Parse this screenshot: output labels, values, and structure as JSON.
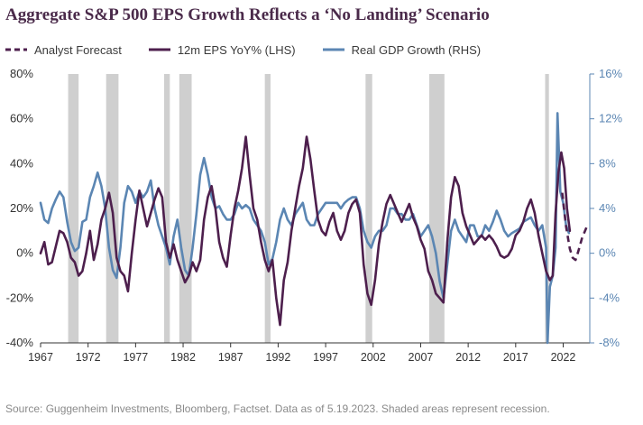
{
  "chart_data": {
    "type": "line",
    "title": "Aggregate S&P 500 EPS Growth Reflects a ‘No Landing’ Scenario",
    "source": "Source: Guggenheim Investments, Bloomberg, Factset. Data as of 5.19.2023. Shaded areas represent recession.",
    "xlim": [
      1967,
      2024.8
    ],
    "x_ticks": [
      "1967",
      "1972",
      "1977",
      "1982",
      "1987",
      "1992",
      "1997",
      "2002",
      "2007",
      "2012",
      "2017",
      "2022"
    ],
    "y_left": {
      "lim": [
        -40,
        80
      ],
      "ticks": [
        "-40%",
        "-20%",
        "0%",
        "20%",
        "40%",
        "60%",
        "80%"
      ]
    },
    "y_right": {
      "lim": [
        -8,
        16
      ],
      "ticks": [
        "-8%",
        "-4%",
        "0%",
        "4%",
        "8%",
        "12%",
        "16%"
      ]
    },
    "legend_position": "top-left",
    "grid": false,
    "recessions": [
      [
        1969.9,
        1971.0
      ],
      [
        1973.9,
        1975.2
      ],
      [
        1980.0,
        1980.6
      ],
      [
        1981.6,
        1982.9
      ],
      [
        1990.6,
        1991.2
      ],
      [
        2001.2,
        2001.9
      ],
      [
        2007.9,
        2009.5
      ],
      [
        2020.1,
        2020.5
      ]
    ],
    "series": [
      {
        "name": "Analyst Forecast",
        "axis": "left",
        "color": "#4d1f4d",
        "style": "dashed",
        "points": [
          [
            2021.9,
            27
          ],
          [
            2022.3,
            12
          ],
          [
            2022.7,
            2
          ],
          [
            2023.0,
            -2
          ],
          [
            2023.3,
            -3
          ],
          [
            2023.6,
            1
          ],
          [
            2024.0,
            7
          ],
          [
            2024.5,
            12
          ]
        ]
      },
      {
        "name": "12m EPS YoY% (LHS)",
        "axis": "left",
        "color": "#4d1f4d",
        "style": "solid",
        "points": [
          [
            1967.0,
            0
          ],
          [
            1967.4,
            5
          ],
          [
            1967.8,
            -5
          ],
          [
            1968.2,
            -4
          ],
          [
            1968.6,
            3
          ],
          [
            1969.0,
            10
          ],
          [
            1969.4,
            9
          ],
          [
            1969.8,
            5
          ],
          [
            1970.2,
            -2
          ],
          [
            1970.6,
            -4
          ],
          [
            1971.0,
            -10
          ],
          [
            1971.4,
            -8
          ],
          [
            1971.8,
            0
          ],
          [
            1972.2,
            10
          ],
          [
            1972.6,
            -3
          ],
          [
            1973.0,
            4
          ],
          [
            1973.4,
            15
          ],
          [
            1973.8,
            20
          ],
          [
            1974.2,
            27
          ],
          [
            1974.6,
            18
          ],
          [
            1975.0,
            -2
          ],
          [
            1975.4,
            -8
          ],
          [
            1975.8,
            -10
          ],
          [
            1976.2,
            -17
          ],
          [
            1976.6,
            0
          ],
          [
            1977.0,
            15
          ],
          [
            1977.4,
            28
          ],
          [
            1977.8,
            20
          ],
          [
            1978.2,
            12
          ],
          [
            1978.6,
            18
          ],
          [
            1979.0,
            24
          ],
          [
            1979.4,
            29
          ],
          [
            1979.8,
            25
          ],
          [
            1980.2,
            5
          ],
          [
            1980.6,
            -2
          ],
          [
            1981.0,
            4
          ],
          [
            1981.4,
            -3
          ],
          [
            1981.8,
            -8
          ],
          [
            1982.2,
            -13
          ],
          [
            1982.6,
            -10
          ],
          [
            1983.0,
            -4
          ],
          [
            1983.4,
            -8
          ],
          [
            1983.8,
            -3
          ],
          [
            1984.2,
            15
          ],
          [
            1984.6,
            25
          ],
          [
            1985.0,
            30
          ],
          [
            1985.4,
            20
          ],
          [
            1985.8,
            5
          ],
          [
            1986.2,
            -2
          ],
          [
            1986.6,
            -6
          ],
          [
            1987.0,
            8
          ],
          [
            1987.4,
            20
          ],
          [
            1987.8,
            28
          ],
          [
            1988.2,
            38
          ],
          [
            1988.6,
            52
          ],
          [
            1989.0,
            35
          ],
          [
            1989.4,
            20
          ],
          [
            1989.8,
            15
          ],
          [
            1990.2,
            5
          ],
          [
            1990.6,
            -3
          ],
          [
            1991.0,
            -8
          ],
          [
            1991.4,
            -3
          ],
          [
            1991.8,
            -20
          ],
          [
            1992.2,
            -32
          ],
          [
            1992.6,
            -12
          ],
          [
            1993.0,
            -4
          ],
          [
            1993.4,
            10
          ],
          [
            1993.8,
            20
          ],
          [
            1994.2,
            30
          ],
          [
            1994.6,
            38
          ],
          [
            1995.0,
            52
          ],
          [
            1995.4,
            42
          ],
          [
            1995.8,
            28
          ],
          [
            1996.2,
            15
          ],
          [
            1996.6,
            10
          ],
          [
            1997.0,
            8
          ],
          [
            1997.4,
            14
          ],
          [
            1997.8,
            18
          ],
          [
            1998.2,
            10
          ],
          [
            1998.6,
            6
          ],
          [
            1999.0,
            10
          ],
          [
            1999.4,
            18
          ],
          [
            1999.8,
            22
          ],
          [
            2000.2,
            24
          ],
          [
            2000.6,
            18
          ],
          [
            2001.0,
            -5
          ],
          [
            2001.4,
            -18
          ],
          [
            2001.8,
            -23
          ],
          [
            2002.2,
            -12
          ],
          [
            2002.6,
            4
          ],
          [
            2003.0,
            14
          ],
          [
            2003.4,
            22
          ],
          [
            2003.8,
            26
          ],
          [
            2004.2,
            22
          ],
          [
            2004.6,
            18
          ],
          [
            2005.0,
            14
          ],
          [
            2005.4,
            18
          ],
          [
            2005.8,
            22
          ],
          [
            2006.2,
            16
          ],
          [
            2006.6,
            12
          ],
          [
            2007.0,
            6
          ],
          [
            2007.4,
            2
          ],
          [
            2007.8,
            -8
          ],
          [
            2008.2,
            -12
          ],
          [
            2008.6,
            -18
          ],
          [
            2009.0,
            -20
          ],
          [
            2009.4,
            -22
          ],
          [
            2009.8,
            5
          ],
          [
            2010.2,
            25
          ],
          [
            2010.6,
            34
          ],
          [
            2011.0,
            30
          ],
          [
            2011.4,
            18
          ],
          [
            2011.8,
            12
          ],
          [
            2012.2,
            8
          ],
          [
            2012.6,
            4
          ],
          [
            2013.0,
            6
          ],
          [
            2013.4,
            8
          ],
          [
            2013.8,
            6
          ],
          [
            2014.2,
            8
          ],
          [
            2014.6,
            6
          ],
          [
            2015.0,
            3
          ],
          [
            2015.4,
            -1
          ],
          [
            2015.8,
            -2
          ],
          [
            2016.2,
            -1
          ],
          [
            2016.6,
            2
          ],
          [
            2017.0,
            8
          ],
          [
            2017.4,
            10
          ],
          [
            2017.8,
            14
          ],
          [
            2018.2,
            20
          ],
          [
            2018.6,
            24
          ],
          [
            2019.0,
            18
          ],
          [
            2019.4,
            8
          ],
          [
            2019.8,
            0
          ],
          [
            2020.2,
            -8
          ],
          [
            2020.6,
            -12
          ],
          [
            2020.9,
            -10
          ],
          [
            2021.2,
            18
          ],
          [
            2021.5,
            36
          ],
          [
            2021.8,
            45
          ],
          [
            2022.1,
            38
          ],
          [
            2022.4,
            20
          ],
          [
            2022.7,
            10
          ]
        ]
      },
      {
        "name": "Real GDP Growth (RHS)",
        "axis": "right",
        "color": "#5b86b3",
        "style": "solid",
        "points": [
          [
            1967.0,
            4.5
          ],
          [
            1967.4,
            3.0
          ],
          [
            1967.8,
            2.7
          ],
          [
            1968.2,
            4.0
          ],
          [
            1968.6,
            4.8
          ],
          [
            1969.0,
            5.5
          ],
          [
            1969.4,
            5.0
          ],
          [
            1969.8,
            2.8
          ],
          [
            1970.2,
            1.0
          ],
          [
            1970.6,
            0.2
          ],
          [
            1971.0,
            0.5
          ],
          [
            1971.4,
            2.8
          ],
          [
            1971.8,
            3.0
          ],
          [
            1972.2,
            5.0
          ],
          [
            1972.6,
            6.0
          ],
          [
            1973.0,
            7.2
          ],
          [
            1973.4,
            6.0
          ],
          [
            1973.8,
            4.0
          ],
          [
            1974.2,
            0.5
          ],
          [
            1974.6,
            -1.5
          ],
          [
            1975.0,
            -2.2
          ],
          [
            1975.4,
            0.5
          ],
          [
            1975.8,
            4.5
          ],
          [
            1976.2,
            6.0
          ],
          [
            1976.6,
            5.5
          ],
          [
            1977.0,
            4.5
          ],
          [
            1977.4,
            5.5
          ],
          [
            1977.8,
            5.0
          ],
          [
            1978.2,
            5.5
          ],
          [
            1978.6,
            6.5
          ],
          [
            1979.0,
            4.0
          ],
          [
            1979.4,
            2.5
          ],
          [
            1979.8,
            1.5
          ],
          [
            1980.2,
            0.5
          ],
          [
            1980.6,
            -1.0
          ],
          [
            1981.0,
            1.5
          ],
          [
            1981.4,
            3.0
          ],
          [
            1981.8,
            0.5
          ],
          [
            1982.2,
            -1.5
          ],
          [
            1982.6,
            -2.0
          ],
          [
            1983.0,
            0.5
          ],
          [
            1983.4,
            3.5
          ],
          [
            1983.8,
            7.0
          ],
          [
            1984.2,
            8.5
          ],
          [
            1984.6,
            7.0
          ],
          [
            1985.0,
            5.0
          ],
          [
            1985.4,
            4.0
          ],
          [
            1985.8,
            4.2
          ],
          [
            1986.2,
            3.5
          ],
          [
            1986.6,
            3.0
          ],
          [
            1987.0,
            3.0
          ],
          [
            1987.4,
            3.5
          ],
          [
            1987.8,
            4.5
          ],
          [
            1988.2,
            4.0
          ],
          [
            1988.6,
            4.3
          ],
          [
            1989.0,
            4.0
          ],
          [
            1989.4,
            3.0
          ],
          [
            1989.8,
            2.5
          ],
          [
            1990.2,
            2.0
          ],
          [
            1990.6,
            1.0
          ],
          [
            1991.0,
            -1.0
          ],
          [
            1991.4,
            -0.5
          ],
          [
            1991.8,
            1.0
          ],
          [
            1992.2,
            3.0
          ],
          [
            1992.6,
            4.0
          ],
          [
            1993.0,
            3.0
          ],
          [
            1993.4,
            2.5
          ],
          [
            1993.8,
            3.5
          ],
          [
            1994.2,
            4.0
          ],
          [
            1994.6,
            4.5
          ],
          [
            1995.0,
            3.0
          ],
          [
            1995.4,
            2.5
          ],
          [
            1995.8,
            2.5
          ],
          [
            1996.2,
            3.5
          ],
          [
            1996.6,
            4.0
          ],
          [
            1997.0,
            4.5
          ],
          [
            1997.4,
            4.5
          ],
          [
            1997.8,
            4.5
          ],
          [
            1998.2,
            4.5
          ],
          [
            1998.6,
            4.0
          ],
          [
            1999.0,
            4.5
          ],
          [
            1999.4,
            4.8
          ],
          [
            1999.8,
            5.0
          ],
          [
            2000.2,
            5.0
          ],
          [
            2000.6,
            4.0
          ],
          [
            2001.0,
            2.0
          ],
          [
            2001.4,
            1.0
          ],
          [
            2001.8,
            0.5
          ],
          [
            2002.2,
            1.5
          ],
          [
            2002.6,
            2.0
          ],
          [
            2003.0,
            2.0
          ],
          [
            2003.4,
            2.5
          ],
          [
            2003.8,
            4.0
          ],
          [
            2004.2,
            4.0
          ],
          [
            2004.6,
            3.5
          ],
          [
            2005.0,
            3.5
          ],
          [
            2005.4,
            3.0
          ],
          [
            2005.8,
            3.0
          ],
          [
            2006.2,
            3.5
          ],
          [
            2006.6,
            2.5
          ],
          [
            2007.0,
            1.5
          ],
          [
            2007.4,
            2.0
          ],
          [
            2007.8,
            2.5
          ],
          [
            2008.2,
            1.5
          ],
          [
            2008.6,
            0.0
          ],
          [
            2009.0,
            -2.5
          ],
          [
            2009.4,
            -4.0
          ],
          [
            2009.8,
            -1.0
          ],
          [
            2010.2,
            2.0
          ],
          [
            2010.6,
            3.0
          ],
          [
            2011.0,
            2.0
          ],
          [
            2011.4,
            1.5
          ],
          [
            2011.8,
            1.0
          ],
          [
            2012.2,
            2.5
          ],
          [
            2012.6,
            2.5
          ],
          [
            2013.0,
            1.5
          ],
          [
            2013.4,
            1.5
          ],
          [
            2013.8,
            2.5
          ],
          [
            2014.2,
            2.0
          ],
          [
            2014.6,
            2.8
          ],
          [
            2015.0,
            3.8
          ],
          [
            2015.4,
            3.0
          ],
          [
            2015.8,
            2.0
          ],
          [
            2016.2,
            1.5
          ],
          [
            2016.6,
            1.8
          ],
          [
            2017.0,
            2.0
          ],
          [
            2017.4,
            2.2
          ],
          [
            2017.8,
            2.8
          ],
          [
            2018.2,
            3.0
          ],
          [
            2018.6,
            3.2
          ],
          [
            2019.0,
            2.5
          ],
          [
            2019.4,
            2.0
          ],
          [
            2019.8,
            2.5
          ],
          [
            2020.2,
            0.5
          ],
          [
            2020.35,
            -8.0
          ],
          [
            2020.6,
            -3.0
          ],
          [
            2020.9,
            -2.0
          ],
          [
            2021.2,
            0.5
          ],
          [
            2021.4,
            12.5
          ],
          [
            2021.7,
            5.5
          ],
          [
            2022.0,
            4.5
          ],
          [
            2022.3,
            2.5
          ],
          [
            2022.6,
            1.8
          ]
        ]
      }
    ]
  }
}
